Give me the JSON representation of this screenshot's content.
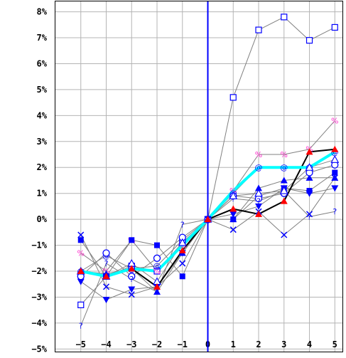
{
  "chart_data": {
    "type": "line",
    "x": [
      -5,
      -4,
      -3,
      -2,
      -1,
      0,
      1,
      2,
      3,
      4,
      5
    ],
    "x_tick_labels": [
      "−5",
      "−4",
      "−3",
      "−2",
      "−1",
      "0",
      "1",
      "2",
      "3",
      "4",
      "5"
    ],
    "y_tick_values": [
      -5,
      -4,
      -3,
      -2,
      -1,
      0,
      1,
      2,
      3,
      4,
      5,
      6,
      7,
      8
    ],
    "y_tick_labels": [
      "−5%",
      "−4%",
      "−3%",
      "−2%",
      "−1%",
      "0%",
      "1%",
      "2%",
      "3%",
      "4%",
      "5%",
      "6%",
      "7%",
      "8%"
    ],
    "ylim": [
      -5.1,
      8.4
    ],
    "xlim": [
      -6.0,
      5.3
    ],
    "grid": true,
    "vertical_reference_line_at_x": 0,
    "colors": {
      "grid": "#b4b4b4",
      "zero_line": "#0000ff",
      "series_line": "#808080",
      "thick_black": "#000000",
      "thick_cyan": "#00ffff",
      "marker_blue": "#0000ff",
      "marker_magenta": "#ff33cc",
      "marker_red": "#ff0000"
    },
    "series": [
      {
        "marker": "open-square",
        "color": "#0000ff",
        "line": "#808080",
        "width": 1,
        "values": [
          -3.3,
          -2.2,
          -1.8,
          -2.0,
          -0.9,
          0,
          4.7,
          7.3,
          7.8,
          6.9,
          7.4
        ]
      },
      {
        "marker": "percent",
        "color": "#ff33cc",
        "line": "#808080",
        "width": 1,
        "values": [
          -1.3,
          -2.0,
          -0.8,
          -2.0,
          -1.0,
          0,
          1.1,
          2.5,
          2.5,
          2.7,
          3.8
        ]
      },
      {
        "marker": "at-sign",
        "color": "#0000ff",
        "line": "#808080",
        "width": 1,
        "values": [
          -2.0,
          -1.4,
          -1.9,
          -1.8,
          -0.8,
          0,
          1.0,
          2.0,
          2.0,
          2.0,
          2.6
        ]
      },
      {
        "marker": "filled-triangle-up",
        "color": "#0000ff",
        "line": "#808080",
        "width": 1,
        "values": [
          -2.0,
          -2.1,
          -1.9,
          -2.8,
          -1.3,
          0,
          0.0,
          1.2,
          1.5,
          1.6,
          1.6
        ]
      },
      {
        "marker": "filled-triangle-down",
        "color": "#0000ff",
        "line": "#808080",
        "width": 1,
        "values": [
          -2.4,
          -3.1,
          -2.7,
          -2.6,
          -1.3,
          0,
          0.2,
          0.5,
          1.2,
          1.0,
          1.2
        ]
      },
      {
        "marker": "filled-square",
        "color": "#0000ff",
        "line": "#808080",
        "width": 1,
        "values": [
          -0.8,
          -2.2,
          -0.8,
          -1.0,
          -2.2,
          0,
          0.0,
          0.9,
          1.2,
          1.1,
          1.8
        ]
      },
      {
        "marker": "open-circle",
        "color": "#0000ff",
        "line": "#808080",
        "width": 1,
        "values": [
          -2.2,
          -1.3,
          -2.2,
          -1.5,
          -0.7,
          0,
          0.9,
          0.8,
          1.0,
          1.8,
          2.1
        ]
      },
      {
        "marker": "x-mark",
        "color": "#0000ff",
        "line": "#808080",
        "width": 1,
        "values": [
          -0.6,
          -2.6,
          -2.9,
          -2.6,
          -1.7,
          0,
          -0.4,
          0.3,
          -0.6,
          0.2,
          1.6
        ]
      },
      {
        "marker": "question-mark",
        "color": "#0000ff",
        "line": "#808080",
        "width": 1,
        "values": [
          -4.1,
          -1.7,
          -2.3,
          -2.8,
          -0.2,
          0,
          0.8,
          0.7,
          1.1,
          0.1,
          0.3
        ]
      },
      {
        "marker": "open-triangle-up",
        "color": "#0000ff",
        "line": "#808080",
        "width": 1,
        "values": [
          -2.0,
          -2.2,
          -1.7,
          -2.4,
          -0.9,
          0,
          0.9,
          1.0,
          1.1,
          2.0,
          2.3
        ]
      },
      {
        "marker": "none",
        "color": "#00ffff",
        "line": "#00ffff",
        "width": 4,
        "values": [
          -2.0,
          -2.2,
          -1.9,
          -2.0,
          -1.0,
          0,
          1.1,
          2.0,
          2.0,
          2.0,
          2.6
        ]
      },
      {
        "marker": "filled-triangle-up-red",
        "color": "#ff0000",
        "line": "#000000",
        "width": 2,
        "values": [
          -2.0,
          -2.2,
          -1.9,
          -2.6,
          -1.2,
          0,
          0.4,
          0.2,
          0.7,
          2.6,
          2.7
        ]
      }
    ]
  }
}
